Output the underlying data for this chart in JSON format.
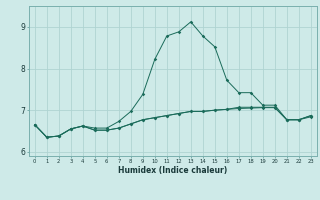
{
  "xlabel": "Humidex (Indice chaleur)",
  "background_color": "#ceeae8",
  "grid_color": "#afd4d2",
  "line_color": "#1a6b5a",
  "x_data": [
    0,
    1,
    2,
    3,
    4,
    5,
    6,
    7,
    8,
    9,
    10,
    11,
    12,
    13,
    14,
    15,
    16,
    17,
    18,
    19,
    20,
    21,
    22,
    23
  ],
  "series": [
    [
      6.65,
      6.35,
      6.38,
      6.55,
      6.62,
      6.57,
      6.57,
      6.73,
      6.97,
      7.38,
      8.22,
      8.78,
      8.88,
      9.12,
      8.78,
      8.52,
      7.72,
      7.42,
      7.42,
      7.12,
      7.12,
      6.77,
      6.77,
      6.87
    ],
    [
      6.65,
      6.35,
      6.38,
      6.55,
      6.62,
      6.52,
      6.52,
      6.57,
      6.67,
      6.77,
      6.82,
      6.87,
      6.92,
      6.97,
      6.97,
      7.0,
      7.02,
      7.07,
      7.07,
      7.07,
      7.07,
      6.77,
      6.77,
      6.87
    ],
    [
      6.65,
      6.35,
      6.38,
      6.55,
      6.62,
      6.52,
      6.52,
      6.57,
      6.67,
      6.77,
      6.82,
      6.87,
      6.92,
      6.97,
      6.97,
      7.0,
      7.02,
      7.04,
      7.05,
      7.06,
      7.06,
      6.77,
      6.77,
      6.84
    ]
  ],
  "ylim": [
    5.9,
    9.5
  ],
  "yticks": [
    6,
    7,
    8,
    9
  ],
  "xticks": [
    0,
    1,
    2,
    3,
    4,
    5,
    6,
    7,
    8,
    9,
    10,
    11,
    12,
    13,
    14,
    15,
    16,
    17,
    18,
    19,
    20,
    21,
    22,
    23
  ]
}
